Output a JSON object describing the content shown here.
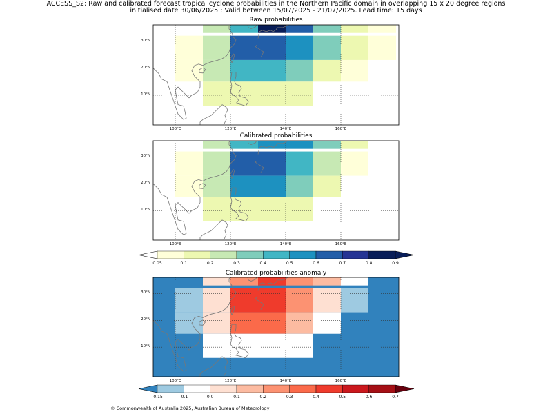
{
  "title_line1": "ACCESS_S2: Raw and calibrated forecast tropical cyclone probabilities in the Northern Pacific domain in overlapping 15 x 20 degree regions",
  "title_line2": "initialised date 30/06/2025 :  Valid between 15/07/2025 - 21/07/2025. Lead time: 15 days",
  "footer": "© Commonwealth of Australia 2025, Australian Bureau of Meteorology",
  "panels": [
    {
      "title": "Raw probabilities",
      "cells": [
        {
          "lon": [
            110,
            120
          ],
          "lat": [
            33,
            37
          ],
          "c": "#c7e9b4"
        },
        {
          "lon": [
            120,
            130
          ],
          "lat": [
            33,
            37
          ],
          "c": "#41b6c4"
        },
        {
          "lon": [
            130,
            140
          ],
          "lat": [
            33,
            37
          ],
          "c": "#081d58"
        },
        {
          "lon": [
            140,
            150
          ],
          "lat": [
            33,
            37
          ],
          "c": "#225ea8"
        },
        {
          "lon": [
            150,
            160
          ],
          "lat": [
            33,
            37
          ],
          "c": "#7fcdbb"
        },
        {
          "lon": [
            160,
            170
          ],
          "lat": [
            33,
            37
          ],
          "c": "#edf8b1"
        },
        {
          "lon": [
            170,
            180
          ],
          "lat": [
            33,
            37
          ],
          "c": "#ffffd9"
        },
        {
          "lon": [
            100,
            110
          ],
          "lat": [
            23,
            32
          ],
          "c": "#ffffd9"
        },
        {
          "lon": [
            110,
            120
          ],
          "lat": [
            23,
            32
          ],
          "c": "#c7e9b4"
        },
        {
          "lon": [
            120,
            140
          ],
          "lat": [
            23,
            32
          ],
          "c": "#225ea8"
        },
        {
          "lon": [
            140,
            150
          ],
          "lat": [
            23,
            32
          ],
          "c": "#1d91c0"
        },
        {
          "lon": [
            150,
            160
          ],
          "lat": [
            23,
            32
          ],
          "c": "#7fcdbb"
        },
        {
          "lon": [
            160,
            170
          ],
          "lat": [
            23,
            32
          ],
          "c": "#edf8b1"
        },
        {
          "lon": [
            170,
            180
          ],
          "lat": [
            23,
            32
          ],
          "c": "#ffffd9"
        },
        {
          "lon": [
            100,
            110
          ],
          "lat": [
            15,
            23
          ],
          "c": "#ffffd9"
        },
        {
          "lon": [
            110,
            120
          ],
          "lat": [
            15,
            23
          ],
          "c": "#c7e9b4"
        },
        {
          "lon": [
            120,
            140
          ],
          "lat": [
            15,
            23
          ],
          "c": "#41b6c4"
        },
        {
          "lon": [
            140,
            150
          ],
          "lat": [
            15,
            23
          ],
          "c": "#7fcdbb"
        },
        {
          "lon": [
            150,
            160
          ],
          "lat": [
            15,
            23
          ],
          "c": "#edf8b1"
        },
        {
          "lon": [
            160,
            170
          ],
          "lat": [
            15,
            23
          ],
          "c": "#ffffd9"
        },
        {
          "lon": [
            110,
            150
          ],
          "lat": [
            6,
            15
          ],
          "c": "#edf8b1"
        }
      ]
    },
    {
      "title": "Calibrated probabilities",
      "cells": [
        {
          "lon": [
            110,
            120
          ],
          "lat": [
            33,
            37
          ],
          "c": "#c7e9b4"
        },
        {
          "lon": [
            120,
            130
          ],
          "lat": [
            33,
            37
          ],
          "c": "#41b6c4"
        },
        {
          "lon": [
            130,
            140
          ],
          "lat": [
            33,
            37
          ],
          "c": "#1d91c0"
        },
        {
          "lon": [
            140,
            150
          ],
          "lat": [
            33,
            37
          ],
          "c": "#1d91c0"
        },
        {
          "lon": [
            150,
            160
          ],
          "lat": [
            33,
            37
          ],
          "c": "#7fcdbb"
        },
        {
          "lon": [
            160,
            170
          ],
          "lat": [
            33,
            37
          ],
          "c": "#edf8b1"
        },
        {
          "lon": [
            100,
            110
          ],
          "lat": [
            23,
            32
          ],
          "c": "#ffffd9"
        },
        {
          "lon": [
            110,
            120
          ],
          "lat": [
            23,
            32
          ],
          "c": "#c7e9b4"
        },
        {
          "lon": [
            120,
            140
          ],
          "lat": [
            23,
            32
          ],
          "c": "#225ea8"
        },
        {
          "lon": [
            140,
            150
          ],
          "lat": [
            23,
            32
          ],
          "c": "#41b6c4"
        },
        {
          "lon": [
            150,
            160
          ],
          "lat": [
            23,
            32
          ],
          "c": "#c7e9b4"
        },
        {
          "lon": [
            160,
            170
          ],
          "lat": [
            23,
            32
          ],
          "c": "#ffffd9"
        },
        {
          "lon": [
            100,
            110
          ],
          "lat": [
            15,
            23
          ],
          "c": "#ffffd9"
        },
        {
          "lon": [
            110,
            120
          ],
          "lat": [
            15,
            23
          ],
          "c": "#c7e9b4"
        },
        {
          "lon": [
            120,
            140
          ],
          "lat": [
            15,
            23
          ],
          "c": "#1d91c0"
        },
        {
          "lon": [
            140,
            150
          ],
          "lat": [
            15,
            23
          ],
          "c": "#7fcdbb"
        },
        {
          "lon": [
            150,
            160
          ],
          "lat": [
            15,
            23
          ],
          "c": "#edf8b1"
        },
        {
          "lon": [
            110,
            150
          ],
          "lat": [
            6,
            15
          ],
          "c": "#edf8b1"
        }
      ]
    },
    {
      "title": "Calibrated probabilities anomaly",
      "background": "#3182bd",
      "cells": [
        {
          "lon": [
            110,
            120
          ],
          "lat": [
            33,
            37
          ],
          "c": "#fee0d2"
        },
        {
          "lon": [
            120,
            130
          ],
          "lat": [
            33,
            37
          ],
          "c": "#fc9272"
        },
        {
          "lon": [
            130,
            140
          ],
          "lat": [
            33,
            37
          ],
          "c": "#ef3b2c"
        },
        {
          "lon": [
            140,
            150
          ],
          "lat": [
            33,
            37
          ],
          "c": "#fc9272"
        },
        {
          "lon": [
            150,
            160
          ],
          "lat": [
            33,
            37
          ],
          "c": "#fcbba1"
        },
        {
          "lon": [
            160,
            170
          ],
          "lat": [
            33,
            37
          ],
          "c": "#ffffff"
        },
        {
          "lon": [
            100,
            110
          ],
          "lat": [
            23,
            32
          ],
          "c": "#9ecae1"
        },
        {
          "lon": [
            110,
            120
          ],
          "lat": [
            23,
            32
          ],
          "c": "#fee0d2"
        },
        {
          "lon": [
            120,
            140
          ],
          "lat": [
            23,
            32
          ],
          "c": "#ef3b2c"
        },
        {
          "lon": [
            140,
            150
          ],
          "lat": [
            23,
            32
          ],
          "c": "#fc9272"
        },
        {
          "lon": [
            150,
            160
          ],
          "lat": [
            23,
            32
          ],
          "c": "#fee0d2"
        },
        {
          "lon": [
            160,
            170
          ],
          "lat": [
            23,
            32
          ],
          "c": "#9ecae1"
        },
        {
          "lon": [
            100,
            110
          ],
          "lat": [
            15,
            23
          ],
          "c": "#9ecae1"
        },
        {
          "lon": [
            110,
            120
          ],
          "lat": [
            15,
            23
          ],
          "c": "#fee0d2"
        },
        {
          "lon": [
            120,
            140
          ],
          "lat": [
            15,
            23
          ],
          "c": "#fb6a4a"
        },
        {
          "lon": [
            140,
            150
          ],
          "lat": [
            15,
            23
          ],
          "c": "#fcbba1"
        },
        {
          "lon": [
            150,
            160
          ],
          "lat": [
            15,
            23
          ],
          "c": "#ffffff"
        },
        {
          "lon": [
            110,
            150
          ],
          "lat": [
            6,
            15
          ],
          "c": "#ffffff"
        }
      ]
    }
  ],
  "map": {
    "lon_ticks": [
      "100°E",
      "120°E",
      "140°E",
      "160°E"
    ],
    "lon_tick_values": [
      100,
      120,
      140,
      160
    ],
    "lat_ticks": [
      "30°N",
      "20°N",
      "10°N"
    ],
    "lat_tick_values": [
      30,
      20,
      10
    ],
    "lon_range": [
      92,
      181
    ],
    "lat_range": [
      -1,
      36
    ]
  },
  "colorbars": [
    {
      "labels": [
        "0.05",
        "0.1",
        "0.2",
        "0.3",
        "0.4",
        "0.5",
        "0.6",
        "0.7",
        "0.8",
        "0.9"
      ],
      "under": "#ffffff",
      "colors": [
        "#ffffd9",
        "#edf8b1",
        "#c7e9b4",
        "#7fcdbb",
        "#41b6c4",
        "#1d91c0",
        "#225ea8",
        "#253494",
        "#081d58"
      ],
      "over": "#081d58"
    },
    {
      "labels": [
        "-0.15",
        "-0.1",
        "0.0",
        "0.1",
        "0.2",
        "0.3",
        "0.4",
        "0.5",
        "0.6",
        "0.7"
      ],
      "under": "#3182bd",
      "colors": [
        "#9ecae1",
        "#ffffff",
        "#fee0d2",
        "#fcbba1",
        "#fc9272",
        "#fb6a4a",
        "#ef3b2c",
        "#cb181d",
        "#a50f15"
      ],
      "over": "#67000d"
    }
  ]
}
